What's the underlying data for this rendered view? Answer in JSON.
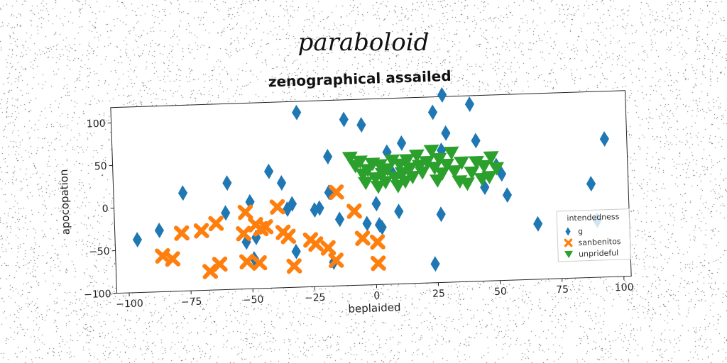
{
  "suptitle": "paraboloid",
  "chart_data": {
    "type": "scatter",
    "title": "zenographical assailed",
    "xlabel": "beplaided",
    "ylabel": "apocopation",
    "xlim": [
      -105,
      103
    ],
    "ylim": [
      -100,
      118
    ],
    "xticks": [
      -100,
      -75,
      -50,
      -25,
      0,
      25,
      50,
      75,
      100
    ],
    "yticks": [
      -100,
      -50,
      0,
      50,
      100
    ],
    "grid": false,
    "legend": {
      "title": "intendedness",
      "placement": "lower-right"
    },
    "series": [
      {
        "name": "g",
        "marker": "diamond",
        "color": "#1f77b4",
        "points": [
          [
            -96,
            -38
          ],
          [
            -87,
            -28
          ],
          [
            -77,
            15
          ],
          [
            -60,
            -10
          ],
          [
            -59,
            25
          ],
          [
            -52,
            -45
          ],
          [
            -50,
            2
          ],
          [
            -49,
            -65
          ],
          [
            -48,
            -40
          ],
          [
            -42,
            37
          ],
          [
            -37,
            23
          ],
          [
            -35,
            -8
          ],
          [
            -33,
            -2
          ],
          [
            -32,
            -58
          ],
          [
            -30,
            105
          ],
          [
            -24,
            -10
          ],
          [
            -22,
            -8
          ],
          [
            -18,
            52
          ],
          [
            -18,
            10
          ],
          [
            -17,
            -72
          ],
          [
            -14,
            -22
          ],
          [
            -11,
            95
          ],
          [
            -3,
            -28
          ],
          [
            -4,
            88
          ],
          [
            1,
            -5
          ],
          [
            2,
            -30
          ],
          [
            3,
            -33
          ],
          [
            6,
            55
          ],
          [
            8,
            30
          ],
          [
            10,
            -15
          ],
          [
            12,
            65
          ],
          [
            25,
            100
          ],
          [
            24,
            -78
          ],
          [
            27,
            -20
          ],
          [
            29,
            120
          ],
          [
            30,
            75
          ],
          [
            28,
            55
          ],
          [
            40,
            108
          ],
          [
            42,
            65
          ],
          [
            45,
            10
          ],
          [
            50,
            35
          ],
          [
            52,
            25
          ],
          [
            54,
            0
          ],
          [
            66,
            -35
          ],
          [
            88,
            10
          ],
          [
            90,
            -33
          ],
          [
            94,
            62
          ]
        ]
      },
      {
        "name": "sanbenitos",
        "marker": "x",
        "color": "#ff7f0e",
        "points": [
          [
            -86,
            -58
          ],
          [
            -82,
            -62
          ],
          [
            -78,
            -32
          ],
          [
            -70,
            -30
          ],
          [
            -67,
            -78
          ],
          [
            -63,
            -70
          ],
          [
            -64,
            -22
          ],
          [
            -52,
            -10
          ],
          [
            -53,
            -35
          ],
          [
            -52,
            -68
          ],
          [
            -48,
            -25
          ],
          [
            -47,
            -70
          ],
          [
            -46,
            -30
          ],
          [
            -44,
            -28
          ],
          [
            -39,
            -5
          ],
          [
            -37,
            -35
          ],
          [
            -35,
            -40
          ],
          [
            -33,
            -75
          ],
          [
            -26,
            -45
          ],
          [
            -24,
            -50
          ],
          [
            -19,
            -55
          ],
          [
            -8,
            -13
          ],
          [
            -5,
            -45
          ],
          [
            -16,
            -70
          ],
          [
            -15,
            10
          ],
          [
            1,
            -50
          ],
          [
            1,
            -75
          ]
        ]
      },
      {
        "name": "unprideful",
        "marker": "triangle_down",
        "color": "#2ca02c",
        "points": [
          [
            -9,
            50
          ],
          [
            -7,
            40
          ],
          [
            -5,
            45
          ],
          [
            -4,
            30
          ],
          [
            -3,
            20
          ],
          [
            -2,
            35
          ],
          [
            0,
            42
          ],
          [
            1,
            25
          ],
          [
            2,
            15
          ],
          [
            3,
            40
          ],
          [
            4,
            30
          ],
          [
            5,
            20
          ],
          [
            6,
            35
          ],
          [
            8,
            45
          ],
          [
            9,
            25
          ],
          [
            10,
            15
          ],
          [
            11,
            40
          ],
          [
            12,
            30
          ],
          [
            13,
            20
          ],
          [
            14,
            45
          ],
          [
            15,
            35
          ],
          [
            16,
            25
          ],
          [
            18,
            50
          ],
          [
            19,
            38
          ],
          [
            20,
            30
          ],
          [
            22,
            42
          ],
          [
            24,
            55
          ],
          [
            25,
            35
          ],
          [
            26,
            20
          ],
          [
            27,
            45
          ],
          [
            28,
            28
          ],
          [
            30,
            38
          ],
          [
            32,
            52
          ],
          [
            33,
            30
          ],
          [
            35,
            18
          ],
          [
            36,
            40
          ],
          [
            38,
            15
          ],
          [
            40,
            28
          ],
          [
            42,
            40
          ],
          [
            44,
            20
          ],
          [
            45,
            35
          ],
          [
            47,
            22
          ],
          [
            48,
            45
          ],
          [
            50,
            32
          ]
        ]
      }
    ]
  }
}
